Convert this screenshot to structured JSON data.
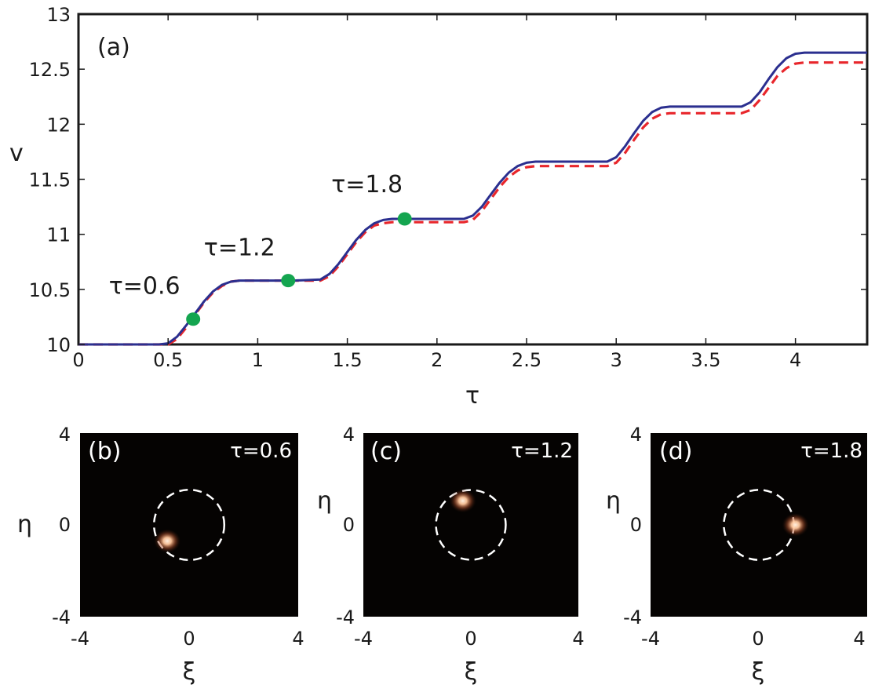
{
  "chart_data": [
    {
      "type": "line",
      "panel_label": "(a)",
      "xlabel": "τ",
      "ylabel": "v",
      "xlim": [
        0,
        4.4
      ],
      "ylim": [
        10,
        13
      ],
      "xticks": [
        "0",
        "0.5",
        "1",
        "1.5",
        "2",
        "2.5",
        "3",
        "3.5",
        "4"
      ],
      "yticks": [
        "10",
        "10.5",
        "11",
        "11.5",
        "12",
        "12.5",
        "13"
      ],
      "series": [
        {
          "style": "solid",
          "color": "#2b2f8f",
          "x": [
            0,
            0.45,
            0.5,
            0.55,
            0.6,
            0.65,
            0.7,
            0.75,
            0.8,
            0.85,
            0.9,
            1.0,
            1.2,
            1.35,
            1.4,
            1.45,
            1.5,
            1.55,
            1.6,
            1.65,
            1.7,
            1.75,
            1.8,
            2.0,
            2.15,
            2.2,
            2.25,
            2.3,
            2.35,
            2.4,
            2.45,
            2.5,
            2.55,
            2.6,
            2.95,
            3.0,
            3.05,
            3.1,
            3.15,
            3.2,
            3.25,
            3.3,
            3.35,
            3.7,
            3.75,
            3.8,
            3.85,
            3.9,
            3.95,
            4.0,
            4.05,
            4.1,
            4.4
          ],
          "y": [
            10.0,
            10.0,
            10.01,
            10.07,
            10.17,
            10.28,
            10.39,
            10.48,
            10.54,
            10.57,
            10.58,
            10.58,
            10.58,
            10.59,
            10.64,
            10.73,
            10.84,
            10.95,
            11.04,
            11.1,
            11.13,
            11.14,
            11.14,
            11.14,
            11.14,
            11.17,
            11.25,
            11.36,
            11.47,
            11.56,
            11.62,
            11.65,
            11.66,
            11.66,
            11.66,
            11.7,
            11.8,
            11.92,
            12.03,
            12.11,
            12.15,
            12.16,
            12.16,
            12.16,
            12.2,
            12.29,
            12.41,
            12.52,
            12.6,
            12.64,
            12.65,
            12.65,
            12.65
          ]
        },
        {
          "style": "dashed",
          "color": "#e8262b",
          "x": [
            0,
            0.45,
            0.5,
            0.55,
            0.6,
            0.65,
            0.7,
            0.75,
            0.8,
            0.85,
            0.9,
            1.0,
            1.2,
            1.35,
            1.4,
            1.45,
            1.5,
            1.55,
            1.6,
            1.65,
            1.7,
            1.75,
            1.8,
            2.0,
            2.15,
            2.2,
            2.25,
            2.3,
            2.35,
            2.4,
            2.45,
            2.5,
            2.55,
            2.6,
            2.95,
            3.0,
            3.05,
            3.1,
            3.15,
            3.2,
            3.25,
            3.3,
            3.35,
            3.7,
            3.75,
            3.8,
            3.85,
            3.9,
            3.95,
            4.0,
            4.05,
            4.1,
            4.4
          ],
          "y": [
            10.0,
            10.0,
            10.0,
            10.05,
            10.15,
            10.27,
            10.38,
            10.47,
            10.53,
            10.57,
            10.58,
            10.58,
            10.58,
            10.58,
            10.62,
            10.71,
            10.82,
            10.93,
            11.02,
            11.08,
            11.1,
            11.11,
            11.11,
            11.11,
            11.11,
            11.13,
            11.21,
            11.32,
            11.43,
            11.52,
            11.58,
            11.61,
            11.62,
            11.62,
            11.62,
            11.65,
            11.74,
            11.86,
            11.97,
            12.05,
            12.09,
            12.1,
            12.1,
            12.1,
            12.13,
            12.22,
            12.33,
            12.44,
            12.51,
            12.55,
            12.56,
            12.56,
            12.56
          ]
        }
      ],
      "markers": [
        {
          "x": 0.64,
          "y": 10.23,
          "label": "τ=0.6",
          "color": "#14a550"
        },
        {
          "x": 1.17,
          "y": 10.58,
          "label": "τ=1.2",
          "color": "#14a550"
        },
        {
          "x": 1.82,
          "y": 11.14,
          "label": "τ=1.8",
          "color": "#14a550"
        }
      ]
    },
    {
      "type": "heatmap",
      "panel_label": "(b)",
      "annotation": "τ=0.6",
      "xlabel": "ξ",
      "ylabel": "η",
      "xlim": [
        -4,
        4
      ],
      "ylim": [
        -4,
        4
      ],
      "xticks": [
        "-4",
        "0",
        "4"
      ],
      "yticks": [
        "-4",
        "0",
        "4"
      ],
      "circle_radius": 1.4,
      "spot": {
        "x": -0.8,
        "y": -0.7
      }
    },
    {
      "type": "heatmap",
      "panel_label": "(c)",
      "annotation": "τ=1.2",
      "xlabel": "ξ",
      "ylabel": "η",
      "xlim": [
        -4,
        4
      ],
      "ylim": [
        -4,
        4
      ],
      "xticks": [
        "-4",
        "0",
        "4"
      ],
      "yticks": [
        "-4",
        "0",
        "4"
      ],
      "circle_radius": 1.4,
      "spot": {
        "x": -0.3,
        "y": 1.05
      }
    },
    {
      "type": "heatmap",
      "panel_label": "(d)",
      "annotation": "τ=1.8",
      "xlabel": "ξ",
      "ylabel": "η",
      "xlim": [
        -4,
        4
      ],
      "ylim": [
        -4,
        4
      ],
      "xticks": [
        "-4",
        "0",
        "4"
      ],
      "yticks": [
        "-4",
        "0",
        "4"
      ],
      "circle_radius": 1.4,
      "spot": {
        "x": 1.35,
        "y": 0.0
      }
    }
  ],
  "colors": {
    "image_background": "#050302",
    "spot_core": "#ffd9b8",
    "spot_edge": "#e0643c",
    "circle": "#ffffff"
  }
}
